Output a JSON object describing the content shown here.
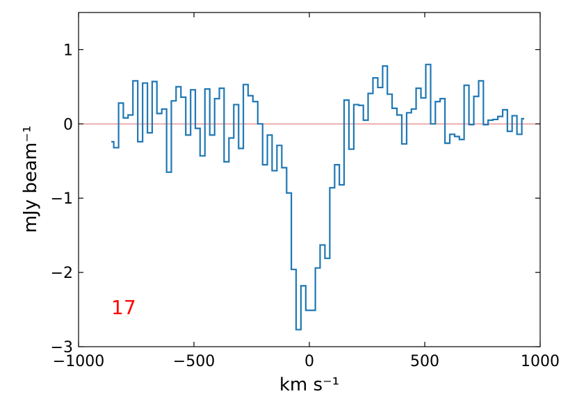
{
  "chart_data": {
    "type": "step",
    "xlabel": "km s⁻¹",
    "ylabel": "mJy beam⁻¹",
    "annotation": {
      "text": "17",
      "color": "#ff0000"
    },
    "reference_line": {
      "value": 0,
      "color": "#e06666"
    },
    "color": "#1f77b4",
    "x": [
      -858,
      -837,
      -816,
      -796,
      -775,
      -754,
      -733,
      -712,
      -691,
      -671,
      -650,
      -629,
      -608,
      -588,
      -567,
      -546,
      -525,
      -504,
      -484,
      -463,
      -442,
      -421,
      -400,
      -380,
      -359,
      -338,
      -317,
      -296,
      -276,
      -255,
      -234,
      -213,
      -192,
      -172,
      -151,
      -130,
      -109,
      -88,
      -68,
      -47,
      -26,
      -5,
      16,
      36,
      57,
      78,
      99,
      120,
      140,
      161,
      182,
      203,
      224,
      244,
      265,
      286,
      307,
      328,
      348,
      369,
      390,
      411,
      432,
      452,
      473,
      494,
      515,
      536,
      556,
      577,
      598,
      619,
      640,
      660,
      681,
      702,
      723,
      744,
      764,
      785,
      806,
      827,
      848,
      868,
      889,
      910,
      931
    ],
    "values": [
      -0.24,
      -0.32,
      0.28,
      0.08,
      0.12,
      0.58,
      -0.24,
      0.55,
      -0.12,
      0.57,
      0.14,
      0.2,
      -0.65,
      0.31,
      0.5,
      0.36,
      -0.15,
      0.46,
      -0.06,
      -0.43,
      0.47,
      -0.15,
      0.34,
      0.48,
      -0.51,
      -0.19,
      0.26,
      -0.33,
      0.53,
      0.38,
      0.3,
      0.0,
      -0.55,
      -0.15,
      -0.63,
      -0.29,
      -0.59,
      -0.93,
      -1.96,
      -2.77,
      -2.18,
      -2.51,
      -2.51,
      -1.94,
      -1.63,
      -1.81,
      -0.86,
      -0.55,
      -0.82,
      0.32,
      -0.34,
      0.26,
      0.25,
      0.05,
      0.41,
      0.62,
      0.49,
      0.78,
      0.4,
      0.21,
      0.12,
      -0.27,
      0.15,
      0.2,
      0.48,
      0.35,
      0.8,
      0.0,
      0.3,
      0.34,
      -0.26,
      -0.14,
      -0.17,
      -0.21,
      0.52,
      -0.01,
      0.37,
      0.58,
      -0.01,
      0.05,
      0.06,
      0.1,
      0.19,
      -0.1,
      0.11,
      -0.14,
      0.07
    ],
    "xlim": [
      -1000,
      1000
    ],
    "xticks": [
      {
        "value": -1000,
        "label": "−1000"
      },
      {
        "value": -500,
        "label": "−500"
      },
      0,
      500,
      1000
    ],
    "ylim": [
      -3,
      1.5
    ],
    "yticks": [
      {
        "value": -3,
        "label": "−3"
      },
      {
        "value": -2,
        "label": "−2"
      },
      {
        "value": -1,
        "label": "−1"
      },
      0,
      1
    ]
  }
}
